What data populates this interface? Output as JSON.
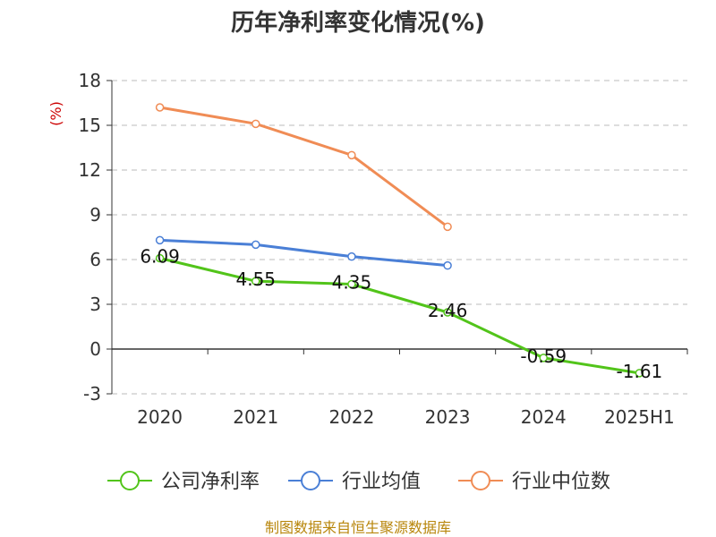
{
  "chart_data": {
    "type": "line",
    "title": "历年净利率变化情况(%)",
    "ylabel": "(%)",
    "categories": [
      "2020",
      "2021",
      "2022",
      "2023",
      "2024",
      "2025H1"
    ],
    "ylim": [
      -3,
      18
    ],
    "yticks": [
      "18",
      "15",
      "12",
      "9",
      "6",
      "3",
      "0",
      "-3"
    ],
    "grid": true,
    "legend_position": "bottom",
    "series": [
      {
        "name": "公司净利率",
        "color": "#52c41a",
        "values": [
          6.09,
          4.55,
          4.35,
          2.46,
          -0.59,
          -1.61
        ],
        "labels": [
          "6.09",
          "4.55",
          "4.35",
          "2.46",
          "-0.59",
          "-1.61"
        ]
      },
      {
        "name": "行业均值",
        "color": "#4a7fd6",
        "values": [
          7.3,
          7.0,
          6.2,
          5.6,
          null,
          null
        ]
      },
      {
        "name": "行业中位数",
        "color": "#f08c55",
        "values": [
          16.2,
          15.1,
          13.0,
          8.2,
          null,
          null
        ]
      }
    ],
    "source": "制图数据来自恒生聚源数据库"
  }
}
